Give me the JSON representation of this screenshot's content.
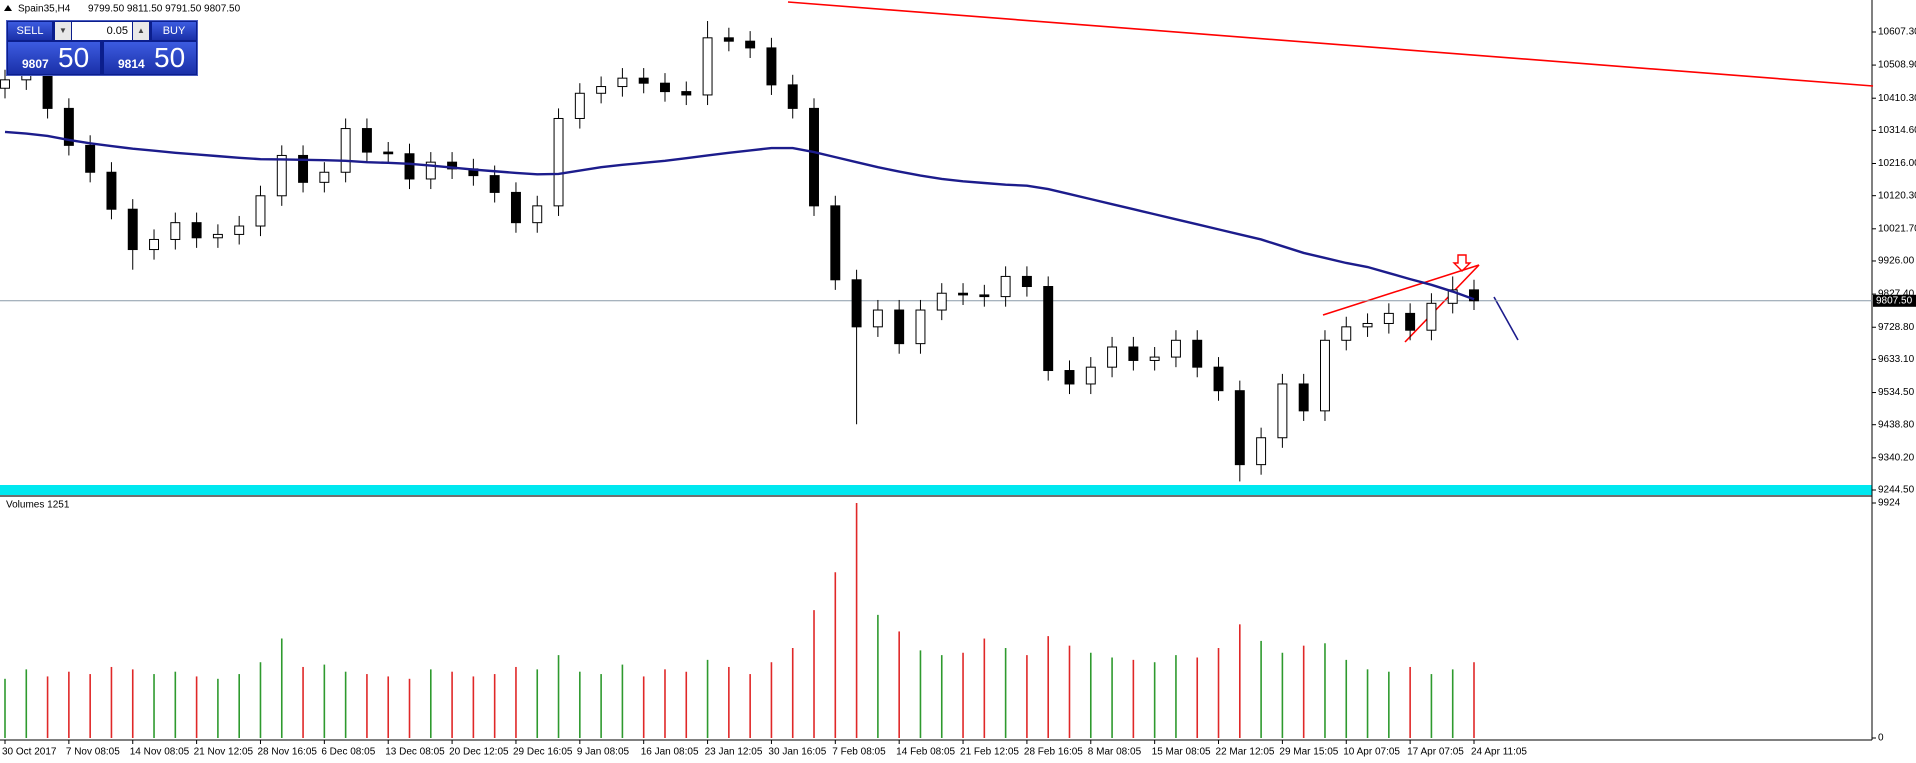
{
  "trade_panel": {
    "sell": "SELL",
    "lot": "0.05",
    "buy": "BUY",
    "bid_main": "9807",
    "bid_big": "50",
    "ask_main": "9814",
    "ask_big": "50"
  },
  "chart_data": [
    {
      "type": "candlestick",
      "title": "Spain35,H4",
      "subtitle": "9799.50 9811.50 9791.50 9807.50",
      "categories": [
        "30 Oct 2017",
        null,
        null,
        "7 Nov 08:05",
        null,
        null,
        "14 Nov 08:05",
        null,
        null,
        "21 Nov 12:05",
        null,
        null,
        "28 Nov 16:05",
        null,
        null,
        "6 Dec 08:05",
        null,
        null,
        "13 Dec 08:05",
        null,
        null,
        "20 Dec 12:05",
        null,
        null,
        "29 Dec 16:05",
        null,
        null,
        "9 Jan 08:05",
        null,
        null,
        "16 Jan 08:05",
        null,
        null,
        "23 Jan 12:05",
        null,
        null,
        "30 Jan 16:05",
        null,
        null,
        "7 Feb 08:05",
        null,
        null,
        "14 Feb 08:05",
        null,
        null,
        "21 Feb 12:05",
        null,
        null,
        "28 Feb 16:05",
        null,
        null,
        "8 Mar 08:05",
        null,
        null,
        "15 Mar 08:05",
        null,
        null,
        "22 Mar 12:05",
        null,
        null,
        "29 Mar 15:05",
        null,
        null,
        "10 Apr 07:05",
        null,
        null,
        "17 Apr 07:05",
        null,
        null,
        "24 Apr 11:05"
      ],
      "open": [
        10440,
        10465,
        10480,
        10380,
        10270,
        10190,
        10080,
        9960,
        9990,
        10040,
        9995,
        10005,
        10030,
        10120,
        10240,
        10160,
        10190,
        10320,
        10250,
        10245,
        10170,
        10220,
        10200,
        10180,
        10130,
        10040,
        10090,
        10350,
        10425,
        10445,
        10470,
        10455,
        10430,
        10420,
        10590,
        10580,
        10560,
        10450,
        10380,
        10090,
        9870,
        9730,
        9780,
        9680,
        9780,
        9830,
        9825,
        9820,
        9880,
        9850,
        9600,
        9560,
        9610,
        9670,
        9630,
        9640,
        9690,
        9610,
        9540,
        9320,
        9400,
        9560,
        9480,
        9690,
        9730,
        9740,
        9770,
        9720,
        9800,
        9840
      ],
      "high": [
        10495,
        10510,
        10510,
        10410,
        10300,
        10220,
        10110,
        10020,
        10070,
        10070,
        10035,
        10060,
        10150,
        10270,
        10270,
        10220,
        10350,
        10350,
        10280,
        10275,
        10250,
        10250,
        10230,
        10210,
        10160,
        10120,
        10380,
        10455,
        10475,
        10500,
        10500,
        10485,
        10460,
        10640,
        10620,
        10610,
        10590,
        10480,
        10410,
        10120,
        9900,
        9810,
        9810,
        9810,
        9860,
        9860,
        9855,
        9910,
        9910,
        9880,
        9630,
        9640,
        9700,
        9700,
        9670,
        9720,
        9720,
        9640,
        9570,
        9430,
        9590,
        9590,
        9720,
        9760,
        9770,
        9800,
        9800,
        9830,
        9880,
        9870
      ],
      "low": [
        10410,
        10435,
        10350,
        10240,
        10160,
        10050,
        9900,
        9930,
        9960,
        9965,
        9965,
        9975,
        10000,
        10090,
        10130,
        10130,
        10160,
        10220,
        10215,
        10140,
        10140,
        10170,
        10150,
        10100,
        10010,
        10010,
        10060,
        10320,
        10395,
        10415,
        10425,
        10400,
        10390,
        10390,
        10550,
        10530,
        10420,
        10350,
        10060,
        9840,
        9440,
        9700,
        9650,
        9650,
        9750,
        9795,
        9790,
        9790,
        9820,
        9570,
        9530,
        9530,
        9580,
        9600,
        9600,
        9610,
        9580,
        9510,
        9270,
        9290,
        9370,
        9450,
        9450,
        9660,
        9700,
        9710,
        9690,
        9690,
        9770,
        9780
      ],
      "close": [
        10465,
        10480,
        10380,
        10270,
        10190,
        10080,
        9960,
        9990,
        10040,
        9995,
        10005,
        10030,
        10120,
        10240,
        10160,
        10190,
        10320,
        10250,
        10245,
        10170,
        10220,
        10200,
        10180,
        10130,
        10040,
        10090,
        10350,
        10425,
        10445,
        10470,
        10455,
        10430,
        10420,
        10590,
        10580,
        10560,
        10450,
        10380,
        10090,
        9870,
        9730,
        9780,
        9680,
        9780,
        9830,
        9825,
        9820,
        9880,
        9850,
        9600,
        9560,
        9610,
        9670,
        9630,
        9640,
        9690,
        9610,
        9540,
        9320,
        9400,
        9560,
        9480,
        9690,
        9730,
        9740,
        9770,
        9720,
        9800,
        9840,
        9807.5
      ],
      "moving_average": {
        "color": "#1c1c8c",
        "values": [
          10310,
          10305,
          10298,
          10286,
          10276,
          10268,
          10260,
          10254,
          10248,
          10243,
          10238,
          10233,
          10229,
          10228,
          10227,
          10226,
          10224,
          10220,
          10218,
          10215,
          10210,
          10204,
          10198,
          10193,
          10188,
          10184,
          10185,
          10195,
          10205,
          10212,
          10218,
          10224,
          10232,
          10240,
          10248,
          10255,
          10262,
          10262,
          10250,
          10235,
          10220,
          10205,
          10192,
          10180,
          10170,
          10163,
          10158,
          10153,
          10150,
          10140,
          10125,
          10110,
          10095,
          10080,
          10065,
          10050,
          10035,
          10020,
          10005,
          9990,
          9970,
          9950,
          9935,
          9920,
          9908,
          9890,
          9872,
          9855,
          9835,
          9812
        ]
      },
      "color": "#000000",
      "up_body": "#ffffff",
      "down_body": "#000000",
      "current_price": {
        "value": 9807.5,
        "label": "9807.50"
      },
      "ylim": [
        9232.6,
        10696.6
      ],
      "yticks": [
        {
          "value": 10607.3,
          "label": "10607.30"
        },
        {
          "value": 10508.9,
          "label": "10508.90"
        },
        {
          "value": 10410.3,
          "label": "10410.30"
        },
        {
          "value": 10314.6,
          "label": "10314.60"
        },
        {
          "value": 10216,
          "label": "10216.00"
        },
        {
          "value": 10120.3,
          "label": "10120.30"
        },
        {
          "value": 10021.7,
          "label": "10021.70"
        },
        {
          "value": 9926,
          "label": "9926.00"
        },
        {
          "value": 9827.4,
          "label": "9827.40"
        },
        {
          "value": 9728.8,
          "label": "9728.80"
        },
        {
          "value": 9633.1,
          "label": "9633.10"
        },
        {
          "value": 9534.5,
          "label": "9534.50"
        },
        {
          "value": 9438.8,
          "label": "9438.80"
        },
        {
          "value": 9340.2,
          "label": "9340.20"
        },
        {
          "value": 9244.5,
          "label": "9244.50"
        }
      ]
    },
    {
      "type": "bar",
      "title": "Volumes 1251",
      "values": [
        2500,
        2900,
        2600,
        2800,
        2700,
        3000,
        2900,
        2700,
        2800,
        2600,
        2500,
        2700,
        3200,
        4200,
        3000,
        3100,
        2800,
        2700,
        2600,
        2500,
        2900,
        2800,
        2600,
        2700,
        3000,
        2900,
        3500,
        2800,
        2700,
        3100,
        2600,
        2900,
        2800,
        3300,
        3000,
        2700,
        3200,
        3800,
        5400,
        7000,
        9924,
        5200,
        4500,
        3700,
        3500,
        3600,
        4200,
        3800,
        3500,
        4300,
        3900,
        3600,
        3400,
        3300,
        3200,
        3500,
        3400,
        3800,
        4800,
        4100,
        3600,
        3900,
        4000,
        3300,
        2900,
        2800,
        3000,
        2700,
        2900,
        3200
      ],
      "up_color": "#2e9a2e",
      "down_color": "#e02828",
      "ylim": [
        0,
        9924
      ],
      "yticks": [
        9924,
        0
      ]
    }
  ]
}
